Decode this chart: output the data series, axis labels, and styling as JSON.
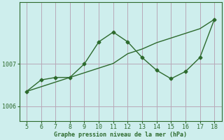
{
  "line_a_x": [
    5,
    6,
    7,
    8,
    9,
    10,
    11,
    12,
    13,
    14,
    15,
    16,
    17,
    18
  ],
  "line_a_y": [
    1006.35,
    1006.62,
    1006.68,
    1006.68,
    1007.0,
    1007.52,
    1007.75,
    1007.52,
    1007.15,
    1006.85,
    1006.65,
    1006.82,
    1007.15,
    1008.05
  ],
  "line_b_x": [
    5,
    6,
    7,
    8,
    9,
    10,
    11,
    12,
    13,
    14,
    15,
    16,
    17,
    18
  ],
  "line_b_y": [
    1006.35,
    1006.46,
    1006.57,
    1006.68,
    1006.79,
    1006.9,
    1007.01,
    1007.24,
    1007.35,
    1007.5,
    1007.61,
    1007.72,
    1007.83,
    1008.05
  ],
  "background_color": "#ceeeed",
  "grid_color": "#b8a8b8",
  "line_color": "#2d6a2d",
  "xlabel": "Graphe pression niveau de la mer (hPa)",
  "xlabel_color": "#2d6a2d",
  "tick_color": "#2d6a2d",
  "ylim_min": 1005.65,
  "ylim_max": 1008.45,
  "yticks": [
    1006,
    1007
  ],
  "xlim_min": 4.5,
  "xlim_max": 18.5,
  "xticks": [
    5,
    6,
    7,
    8,
    9,
    10,
    11,
    12,
    13,
    14,
    15,
    16,
    17,
    18
  ]
}
